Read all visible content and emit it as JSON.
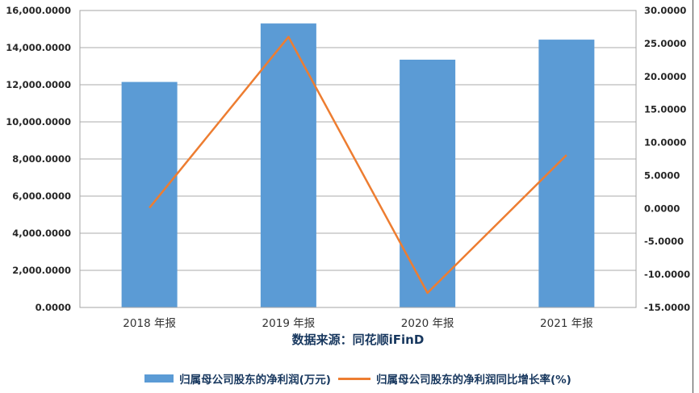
{
  "source_note": "数据来源：同花顺iFinD",
  "colors": {
    "bar": "#5B9BD5",
    "line": "#ED7D31",
    "grid": "#ABABAB",
    "border": "#A6A6A6",
    "axis_text": "#262626",
    "label_text": "#17375E",
    "frame_line": "#4A4A4A",
    "background": "#FFFFFF"
  },
  "chart_data": {
    "type": "combo",
    "categories": [
      "2018 年报",
      "2019 年报",
      "2020 年报",
      "2021 年报"
    ],
    "series": [
      {
        "name": "归属母公司股东的净利润(万元)",
        "type": "bar",
        "axis": "left",
        "color": "#5B9BD5",
        "values": [
          12150,
          15300,
          13350,
          14430
        ]
      },
      {
        "name": "归属母公司股东的净利润同比增长率(%)",
        "type": "line",
        "axis": "right",
        "color": "#ED7D31",
        "values": [
          0.1,
          26.0,
          -12.8,
          8.1
        ]
      }
    ],
    "left_axis": {
      "min": 0,
      "max": 16000,
      "step": 2000,
      "tick_labels": [
        "16,000.0000",
        "14,000.0000",
        "12,000.0000",
        "10,000.0000",
        "8,000.0000",
        "6,000.0000",
        "4,000.0000",
        "2,000.0000",
        "0.0000"
      ]
    },
    "right_axis": {
      "min": -15,
      "max": 30,
      "step": 5,
      "tick_labels": [
        "30.0000",
        "25.0000",
        "20.0000",
        "15.0000",
        "10.0000",
        "5.0000",
        "0.0000",
        "-5.0000",
        "-10.0000",
        "-15.0000"
      ]
    },
    "grid": true,
    "legend_position": "bottom"
  }
}
